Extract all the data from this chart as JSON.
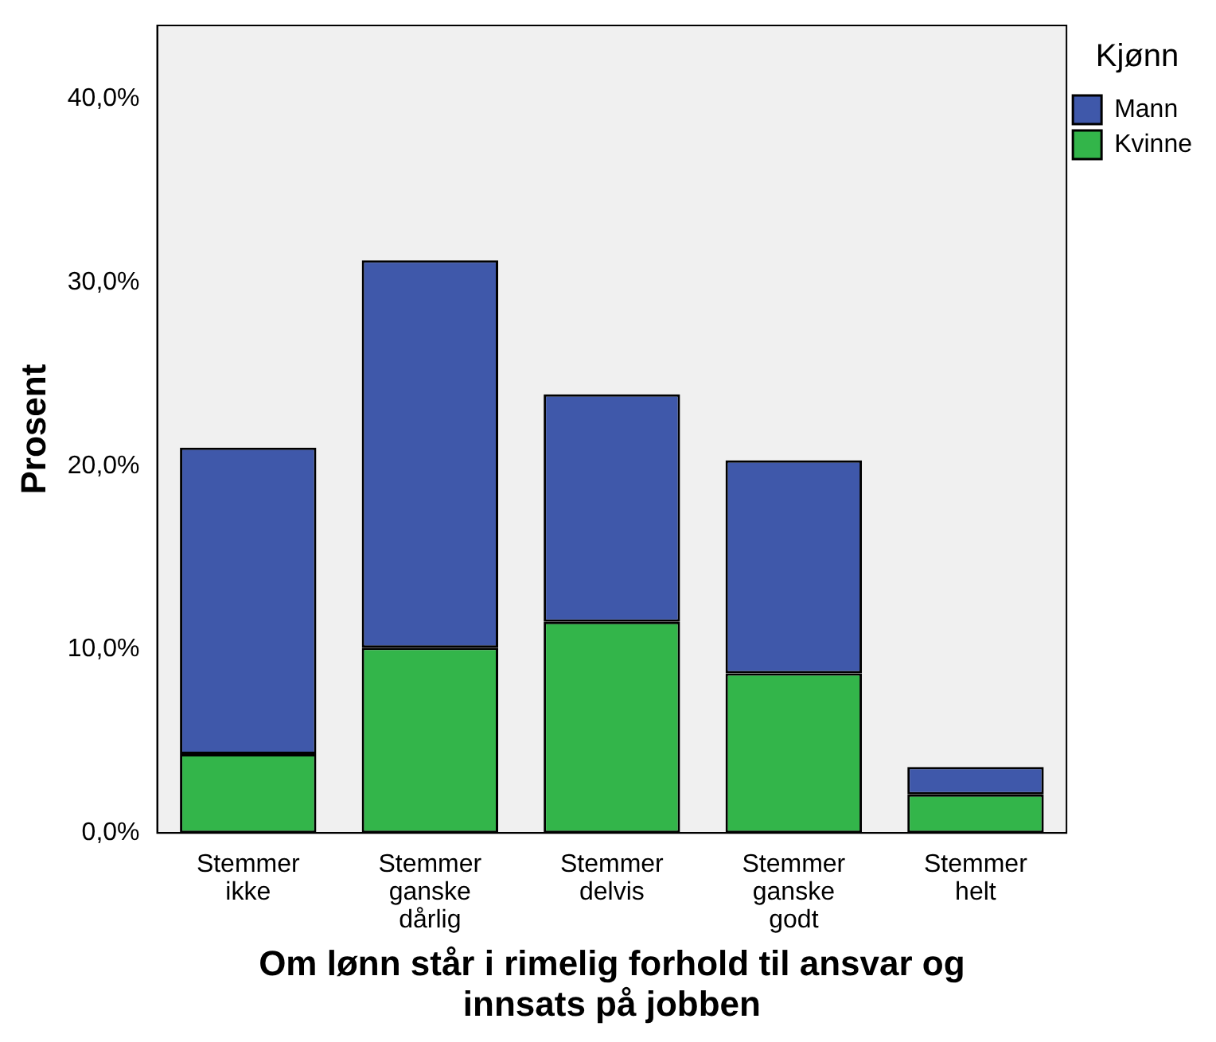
{
  "chart_data": {
    "type": "bar",
    "stacked": true,
    "xlabel": "Om lønn står i rimelig forhold til ansvar og innsats på jobben",
    "ylabel": "Prosent",
    "legend_title": "Kjønn",
    "legend": "top right",
    "grid": false,
    "categories": [
      "Stemmer ikke",
      "Stemmer ganske dårlig",
      "Stemmer delvis",
      "Stemmer ganske godt",
      "Stemmer helt"
    ],
    "series": [
      {
        "name": "Kvinne",
        "color": "#33b54a",
        "values": [
          4.3,
          10.1,
          11.5,
          8.7,
          2.1
        ]
      },
      {
        "name": "Mann",
        "color": "#3f58aa",
        "values": [
          16.7,
          21.1,
          12.4,
          11.6,
          1.5
        ]
      }
    ],
    "ylim": [
      0,
      44
    ],
    "yticks": [
      {
        "value": 0,
        "label": "0,0%"
      },
      {
        "value": 10,
        "label": "10,0%"
      },
      {
        "value": 20,
        "label": "20,0%"
      },
      {
        "value": 30,
        "label": "30,0%"
      },
      {
        "value": 40,
        "label": "40,0%"
      }
    ]
  }
}
